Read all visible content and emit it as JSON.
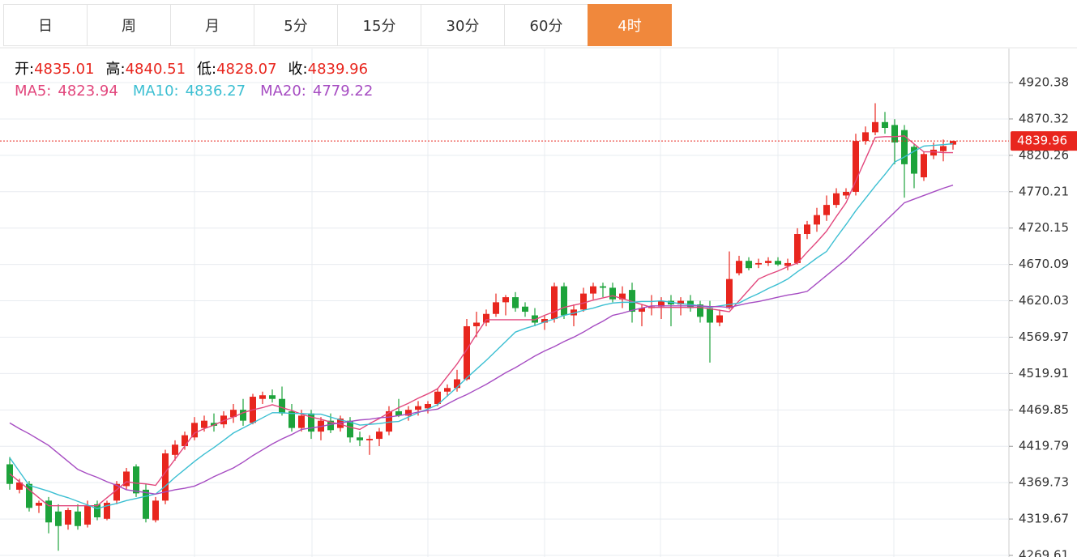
{
  "tabs": [
    "日",
    "周",
    "月",
    "5分",
    "15分",
    "30分",
    "60分",
    "4时"
  ],
  "active_tab": 7,
  "chart_data": {
    "type": "candlestick",
    "ohlc_labels": [
      "开:",
      "高:",
      "低:",
      "收:"
    ],
    "up_color": "#e8261e",
    "down_color": "#1da33b",
    "open": [
      4395,
      4360,
      4368,
      4338,
      4345,
      4330,
      4312,
      4330,
      4312,
      4340,
      4320,
      4345,
      4365,
      4392,
      4360,
      4318,
      4345,
      4408,
      4420,
      4432,
      4445,
      4452,
      4450,
      4460,
      4470,
      4452,
      4485,
      4490,
      4485,
      4468,
      4445,
      4465,
      4440,
      4455,
      4445,
      4455,
      4432,
      4428,
      4430,
      4440,
      4468,
      4462,
      4470,
      4472,
      4478,
      4495,
      4500,
      4512,
      4585,
      4590,
      4602,
      4618,
      4625,
      4612,
      4600,
      4590,
      4595,
      4640,
      4600,
      4608,
      4630,
      4640,
      4638,
      4622,
      4635,
      4605,
      4610,
      4612,
      4620,
      4615,
      4620,
      4615,
      4610,
      4590,
      4610,
      4658,
      4675,
      4670,
      4672,
      4675,
      4668,
      4672,
      4712,
      4725,
      4738,
      4752,
      4765,
      4770,
      4840,
      4852,
      4866,
      4862,
      4855,
      4832,
      4790,
      4820,
      4826,
      4835.01
    ],
    "high": [
      4405,
      4375,
      4372,
      4345,
      4350,
      4340,
      4335,
      4340,
      4345,
      4345,
      4345,
      4372,
      4390,
      4395,
      4368,
      4350,
      4415,
      4428,
      4440,
      4460,
      4462,
      4465,
      4468,
      4478,
      4485,
      4492,
      4495,
      4498,
      4502,
      4478,
      4470,
      4470,
      4460,
      4465,
      4462,
      4460,
      4440,
      4435,
      4445,
      4475,
      4485,
      4475,
      4482,
      4482,
      4500,
      4505,
      4525,
      4595,
      4605,
      4608,
      4630,
      4628,
      4632,
      4618,
      4610,
      4600,
      4645,
      4645,
      4615,
      4638,
      4645,
      4645,
      4645,
      4640,
      4645,
      4615,
      4628,
      4625,
      4628,
      4625,
      4628,
      4620,
      4620,
      4608,
      4688,
      4682,
      4680,
      4678,
      4680,
      4680,
      4678,
      4720,
      4730,
      4748,
      4765,
      4775,
      4775,
      4850,
      4860,
      4892,
      4880,
      4870,
      4862,
      4836,
      4825,
      4838,
      4842,
      4840.51
    ],
    "low": [
      4360,
      4355,
      4330,
      4328,
      4300,
      4276,
      4305,
      4305,
      4308,
      4318,
      4318,
      4340,
      4360,
      4350,
      4315,
      4315,
      4340,
      4400,
      4415,
      4428,
      4440,
      4440,
      4445,
      4452,
      4448,
      4450,
      4478,
      4480,
      4462,
      4440,
      4440,
      4430,
      4428,
      4438,
      4440,
      4425,
      4420,
      4408,
      4420,
      4435,
      4460,
      4455,
      4462,
      4465,
      4475,
      4488,
      4495,
      4510,
      4570,
      4585,
      4598,
      4600,
      4605,
      4598,
      4585,
      4580,
      4590,
      4595,
      4585,
      4605,
      4622,
      4625,
      4618,
      4610,
      4590,
      4585,
      4600,
      4595,
      4585,
      4600,
      4605,
      4590,
      4535,
      4585,
      4608,
      4655,
      4662,
      4665,
      4668,
      4668,
      4662,
      4670,
      4705,
      4715,
      4730,
      4748,
      4760,
      4765,
      4835,
      4848,
      4850,
      4808,
      4762,
      4775,
      4785,
      4815,
      4812,
      4828.07
    ],
    "close": [
      4368,
      4370,
      4335,
      4342,
      4315,
      4310,
      4332,
      4310,
      4338,
      4322,
      4342,
      4368,
      4385,
      4355,
      4320,
      4345,
      4410,
      4422,
      4435,
      4452,
      4455,
      4448,
      4462,
      4470,
      4455,
      4488,
      4490,
      4485,
      4465,
      4445,
      4462,
      4440,
      4455,
      4442,
      4458,
      4432,
      4428,
      4430,
      4440,
      4468,
      4462,
      4470,
      4475,
      4478,
      4495,
      4500,
      4512,
      4585,
      4590,
      4602,
      4618,
      4625,
      4610,
      4605,
      4590,
      4595,
      4640,
      4600,
      4608,
      4630,
      4640,
      4638,
      4622,
      4630,
      4605,
      4610,
      4612,
      4620,
      4615,
      4620,
      4610,
      4598,
      4590,
      4600,
      4650,
      4675,
      4665,
      4672,
      4675,
      4670,
      4672,
      4712,
      4725,
      4738,
      4752,
      4768,
      4770,
      4840,
      4852,
      4866,
      4858,
      4838,
      4808,
      4795,
      4822,
      4828,
      4833,
      4839.96
    ],
    "series": [
      {
        "name": "MA5:",
        "color": "#e2477d",
        "values": [
          4382,
          4371,
          4360,
          4349,
          4338,
          4338,
          4338,
          4338,
          4338,
          4338,
          4349,
          4360,
          4371,
          4369,
          4368,
          4366,
          4384,
          4402,
          4420,
          4438,
          4444,
          4449,
          4455,
          4460,
          4466,
          4470,
          4473,
          4477,
          4473,
          4469,
          4464,
          4460,
          4457,
          4453,
          4450,
          4446,
          4443,
          4451,
          4458,
          4466,
          4473,
          4479,
          4486,
          4492,
          4499,
          4516,
          4533,
          4553,
          4574,
          4594,
          4594,
          4594,
          4594,
          4594,
          4594,
          4600,
          4605,
          4611,
          4614,
          4617,
          4621,
          4624,
          4627,
          4623,
          4619,
          4615,
          4611,
          4611,
          4611,
          4611,
          4611,
          4611,
          4609,
          4607,
          4605,
          4620,
          4635,
          4650,
          4656,
          4661,
          4667,
          4672,
          4687,
          4701,
          4716,
          4736,
          4755,
          4785,
          4815,
          4845,
          4846,
          4846,
          4847,
          4836,
          4825,
          4825,
          4824,
          4823.94
        ]
      },
      {
        "name": "MA10:",
        "color": "#3cbfd2",
        "values": [
          4404,
          4385,
          4366,
          4362,
          4358,
          4353,
          4349,
          4344,
          4339,
          4334,
          4338,
          4341,
          4345,
          4348,
          4351,
          4354,
          4365,
          4377,
          4388,
          4399,
          4409,
          4418,
          4428,
          4438,
          4445,
          4452,
          4459,
          4466,
          4466,
          4465,
          4465,
          4464,
          4464,
          4460,
          4456,
          4453,
          4449,
          4450,
          4451,
          4453,
          4454,
          4460,
          4466,
          4471,
          4477,
          4489,
          4501,
          4514,
          4526,
          4538,
          4551,
          4564,
          4577,
          4582,
          4586,
          4591,
          4595,
          4600,
          4603,
          4607,
          4610,
          4614,
          4617,
          4618,
          4618,
          4619,
          4619,
          4620,
          4618,
          4616,
          4615,
          4613,
          4611,
          4613,
          4615,
          4617,
          4624,
          4630,
          4637,
          4643,
          4650,
          4660,
          4669,
          4679,
          4688,
          4707,
          4725,
          4744,
          4761,
          4778,
          4794,
          4811,
          4818,
          4826,
          4833,
          4834,
          4835,
          4836.27
        ]
      },
      {
        "name": "MA20:",
        "color": "#a64cc2",
        "values": [
          4452,
          4444,
          4437,
          4429,
          4421,
          4410,
          4399,
          4388,
          4382,
          4377,
          4371,
          4366,
          4360,
          4358,
          4356,
          4354,
          4357,
          4360,
          4362,
          4365,
          4371,
          4378,
          4384,
          4390,
          4398,
          4407,
          4415,
          4423,
          4430,
          4436,
          4443,
          4445,
          4447,
          4450,
          4452,
          4454,
          4456,
          4457,
          4459,
          4460,
          4462,
          4464,
          4467,
          4469,
          4471,
          4478,
          4485,
          4491,
          4498,
          4505,
          4513,
          4521,
          4528,
          4536,
          4544,
          4551,
          4557,
          4564,
          4570,
          4577,
          4585,
          4592,
          4600,
          4603,
          4607,
          4610,
          4613,
          4613,
          4613,
          4613,
          4613,
          4613,
          4612,
          4612,
          4611,
          4614,
          4617,
          4619,
          4622,
          4625,
          4628,
          4630,
          4633,
          4644,
          4655,
          4666,
          4677,
          4690,
          4703,
          4716,
          4729,
          4742,
          4755,
          4760,
          4765,
          4770,
          4775,
          4779.22
        ]
      }
    ],
    "ylim": [
      4267.4,
      4967.2
    ],
    "yticks": [
      4269.61,
      4319.67,
      4369.73,
      4419.79,
      4469.85,
      4519.91,
      4569.97,
      4620.03,
      4670.09,
      4720.15,
      4770.21,
      4820.26,
      4870.32,
      4920.38
    ],
    "grid": true,
    "last_price_line": true
  }
}
